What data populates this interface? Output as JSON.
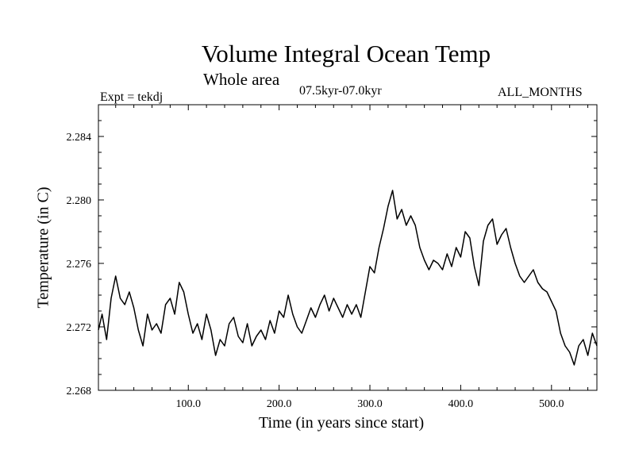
{
  "chart_data": {
    "type": "line",
    "title": "Volume Integral Ocean Temp",
    "subtitle": "Whole area",
    "period": "07.5kyr-07.0kyr",
    "expt": "Expt = tekdj",
    "months": "ALL_MONTHS",
    "xlabel": "Time (in years since start)",
    "ylabel": "Temperature (in C)",
    "xlim": [
      1,
      550
    ],
    "ylim": [
      2.268,
      2.286
    ],
    "x_ticks": [
      100,
      200,
      300,
      400,
      500
    ],
    "x_tick_labels": [
      "100.0",
      "200.0",
      "300.0",
      "400.0",
      "500.0"
    ],
    "y_ticks": [
      2.268,
      2.272,
      2.276,
      2.28,
      2.284
    ],
    "y_tick_labels": [
      "2.268",
      "2.272",
      "2.276",
      "2.280",
      "2.284"
    ],
    "series": [
      {
        "name": "Volume Integral Ocean Temp",
        "x": [
          1,
          5,
          10,
          15,
          20,
          25,
          30,
          35,
          40,
          45,
          50,
          55,
          60,
          65,
          70,
          75,
          80,
          85,
          90,
          95,
          100,
          105,
          110,
          115,
          120,
          125,
          130,
          135,
          140,
          145,
          150,
          155,
          160,
          165,
          170,
          175,
          180,
          185,
          190,
          195,
          200,
          205,
          210,
          215,
          220,
          225,
          230,
          235,
          240,
          245,
          250,
          255,
          260,
          265,
          270,
          275,
          280,
          285,
          290,
          295,
          300,
          305,
          310,
          315,
          320,
          325,
          330,
          335,
          340,
          345,
          350,
          355,
          360,
          365,
          370,
          375,
          380,
          385,
          390,
          395,
          400,
          405,
          410,
          415,
          420,
          425,
          430,
          435,
          440,
          445,
          450,
          455,
          460,
          465,
          470,
          475,
          480,
          485,
          490,
          495,
          500,
          505,
          510,
          515,
          520,
          525,
          530,
          535,
          540,
          545,
          550
        ],
        "values": [
          2.2718,
          2.2728,
          2.2712,
          2.2738,
          2.2752,
          2.2738,
          2.2734,
          2.2742,
          2.2732,
          2.2718,
          2.2708,
          2.2728,
          2.2718,
          2.2722,
          2.2716,
          2.2734,
          2.2738,
          2.2728,
          2.2748,
          2.2742,
          2.2728,
          2.2716,
          2.2722,
          2.2712,
          2.2728,
          2.2718,
          2.2702,
          2.2712,
          2.2708,
          2.2722,
          2.2726,
          2.2714,
          2.271,
          2.2722,
          2.2708,
          2.2714,
          2.2718,
          2.2712,
          2.2724,
          2.2716,
          2.273,
          2.2726,
          2.274,
          2.2728,
          2.272,
          2.2716,
          2.2724,
          2.2732,
          2.2726,
          2.2734,
          2.274,
          2.273,
          2.2738,
          2.2732,
          2.2726,
          2.2734,
          2.2728,
          2.2734,
          2.2726,
          2.2742,
          2.2758,
          2.2754,
          2.277,
          2.2782,
          2.2796,
          2.2806,
          2.2788,
          2.2794,
          2.2784,
          2.279,
          2.2784,
          2.277,
          2.2762,
          2.2756,
          2.2762,
          2.276,
          2.2756,
          2.2766,
          2.2758,
          2.277,
          2.2764,
          2.278,
          2.2776,
          2.2758,
          2.2746,
          2.2774,
          2.2784,
          2.2788,
          2.2772,
          2.2778,
          2.2782,
          2.277,
          2.276,
          2.2752,
          2.2748,
          2.2752,
          2.2756,
          2.2748,
          2.2744,
          2.2742,
          2.2736,
          2.273,
          2.2716,
          2.2708,
          2.2704,
          2.2696,
          2.2708,
          2.2712,
          2.2702,
          2.2716,
          2.2708
        ]
      }
    ]
  }
}
